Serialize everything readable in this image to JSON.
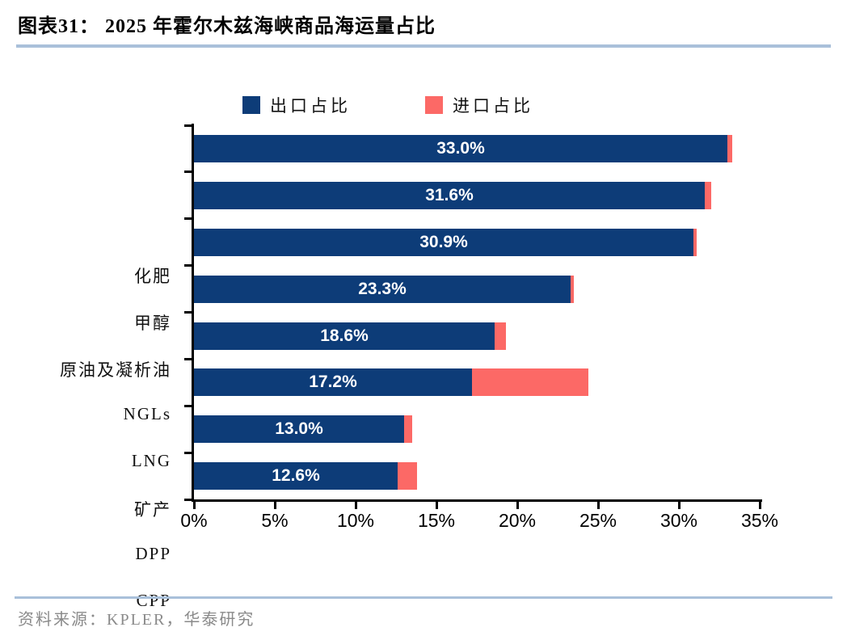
{
  "header": {
    "title": "图表31：  2025 年霍尔木兹海峡商品海运量占比"
  },
  "legend": [
    {
      "label": "出口占比",
      "color": "#0d3c78"
    },
    {
      "label": "进口占比",
      "color": "#fc6966"
    }
  ],
  "chart_data": {
    "type": "bar",
    "orientation": "horizontal",
    "stacked": true,
    "title": "2025 年霍尔木兹海峡商品海运量占比",
    "categories": [
      "化肥",
      "甲醇",
      "原油及凝析油",
      "NGLs",
      "LNG",
      "矿产",
      "DPP",
      "CPP"
    ],
    "series": [
      {
        "name": "出口占比",
        "color": "#0d3c78",
        "values": [
          33.0,
          31.6,
          30.9,
          23.3,
          18.6,
          17.2,
          13.0,
          12.6
        ]
      },
      {
        "name": "进口占比",
        "color": "#fc6966",
        "values": [
          0.3,
          0.4,
          0.2,
          0.2,
          0.7,
          7.2,
          0.5,
          1.2
        ]
      }
    ],
    "bar_labels": [
      "33.0%",
      "31.6%",
      "30.9%",
      "23.3%",
      "18.6%",
      "17.2%",
      "13.0%",
      "12.6%"
    ],
    "x_ticks": [
      "0%",
      "5%",
      "10%",
      "15%",
      "20%",
      "25%",
      "30%",
      "35%"
    ],
    "xlim": [
      0,
      35
    ],
    "xlabel": "",
    "ylabel": "",
    "grid": false,
    "legend_position": "top-center"
  },
  "footer": {
    "source": "资料来源：KPLER，华泰研究"
  },
  "colors": {
    "export_navy": "#0d3c78",
    "import_pink": "#fc6966",
    "rule_blue": "#a9c0da",
    "axis_black": "#000000",
    "source_gray": "#8a8a8a",
    "bar_label_white": "#ffffff"
  }
}
